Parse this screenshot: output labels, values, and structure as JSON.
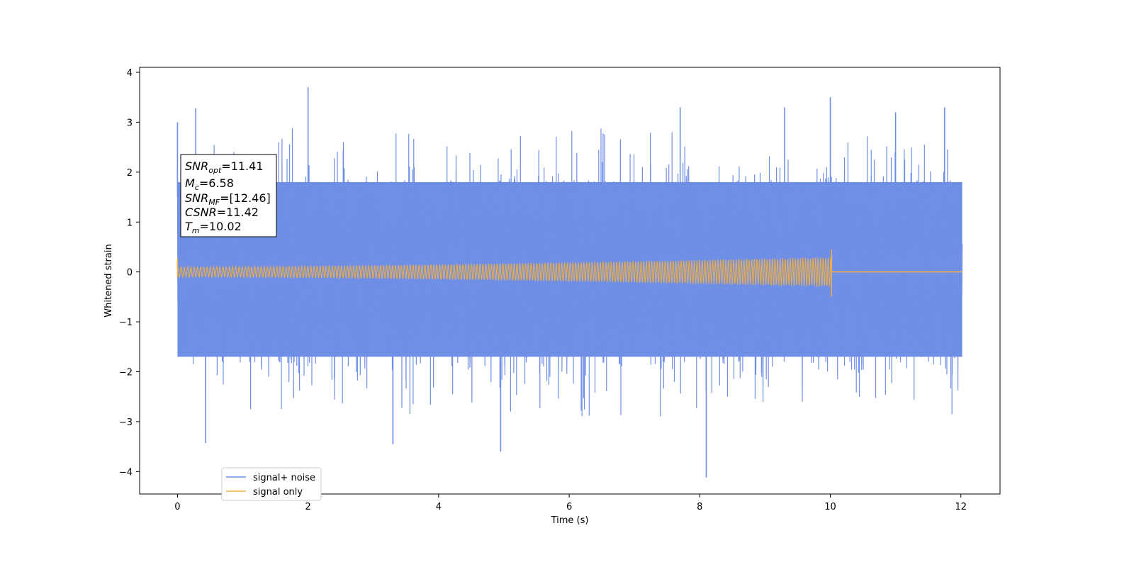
{
  "chart_data": {
    "type": "line",
    "xlabel": "Time (s)",
    "ylabel": "Whitened strain",
    "xlim": [
      -0.58,
      12.6
    ],
    "ylim": [
      -4.45,
      4.1
    ],
    "xticks": [
      0,
      2,
      4,
      6,
      8,
      10,
      12
    ],
    "yticks": [
      -4,
      -3,
      -2,
      -1,
      0,
      1,
      2,
      3,
      4
    ],
    "ytick_labels": [
      "−4",
      "−3",
      "−2",
      "−1",
      "0",
      "1",
      "2",
      "3",
      "4"
    ],
    "grid": false,
    "legend_position": "bottom-left",
    "series": [
      {
        "name": "signal+ noise",
        "color": "#6f8fe6",
        "description_values": {
          "t_start": 0.0,
          "t_end": 12.02,
          "band_top": 1.8,
          "band_bottom": -1.7,
          "peaks": [
            {
              "x": 0.0,
              "y": 3.0
            },
            {
              "x": 0.28,
              "y": 3.28
            },
            {
              "x": 2.0,
              "y": 3.7
            },
            {
              "x": 0.43,
              "y": -3.43
            },
            {
              "x": 3.3,
              "y": -3.45
            },
            {
              "x": 4.95,
              "y": -3.6
            },
            {
              "x": 8.1,
              "y": -4.12
            },
            {
              "x": 10.0,
              "y": 3.5
            },
            {
              "x": 11.0,
              "y": 3.2
            },
            {
              "x": 11.75,
              "y": 3.3
            },
            {
              "x": 7.7,
              "y": 3.3
            },
            {
              "x": 9.3,
              "y": 3.3
            }
          ]
        }
      },
      {
        "name": "signal only",
        "color": "#f5b041",
        "description_values": {
          "t_start": 0.0,
          "t_merger": 10.02,
          "t_end": 12.02,
          "amplitude_start": 0.1,
          "amplitude_merger": 0.3,
          "amplitude_peak": 0.45
        }
      }
    ],
    "annotation": {
      "lines": [
        {
          "name": "SNR",
          "sub": "opt",
          "value": "=11.41"
        },
        {
          "name": "M",
          "sub": "c",
          "value": "=6.58"
        },
        {
          "name": "SNR",
          "sub": "MF",
          "value": "=[12.46]"
        },
        {
          "name": "CSNR",
          "sub": "",
          "value": "=11.42"
        },
        {
          "name": "T",
          "sub": "m",
          "value": "=10.02"
        }
      ]
    },
    "legend": [
      "signal+ noise",
      "signal only"
    ]
  }
}
